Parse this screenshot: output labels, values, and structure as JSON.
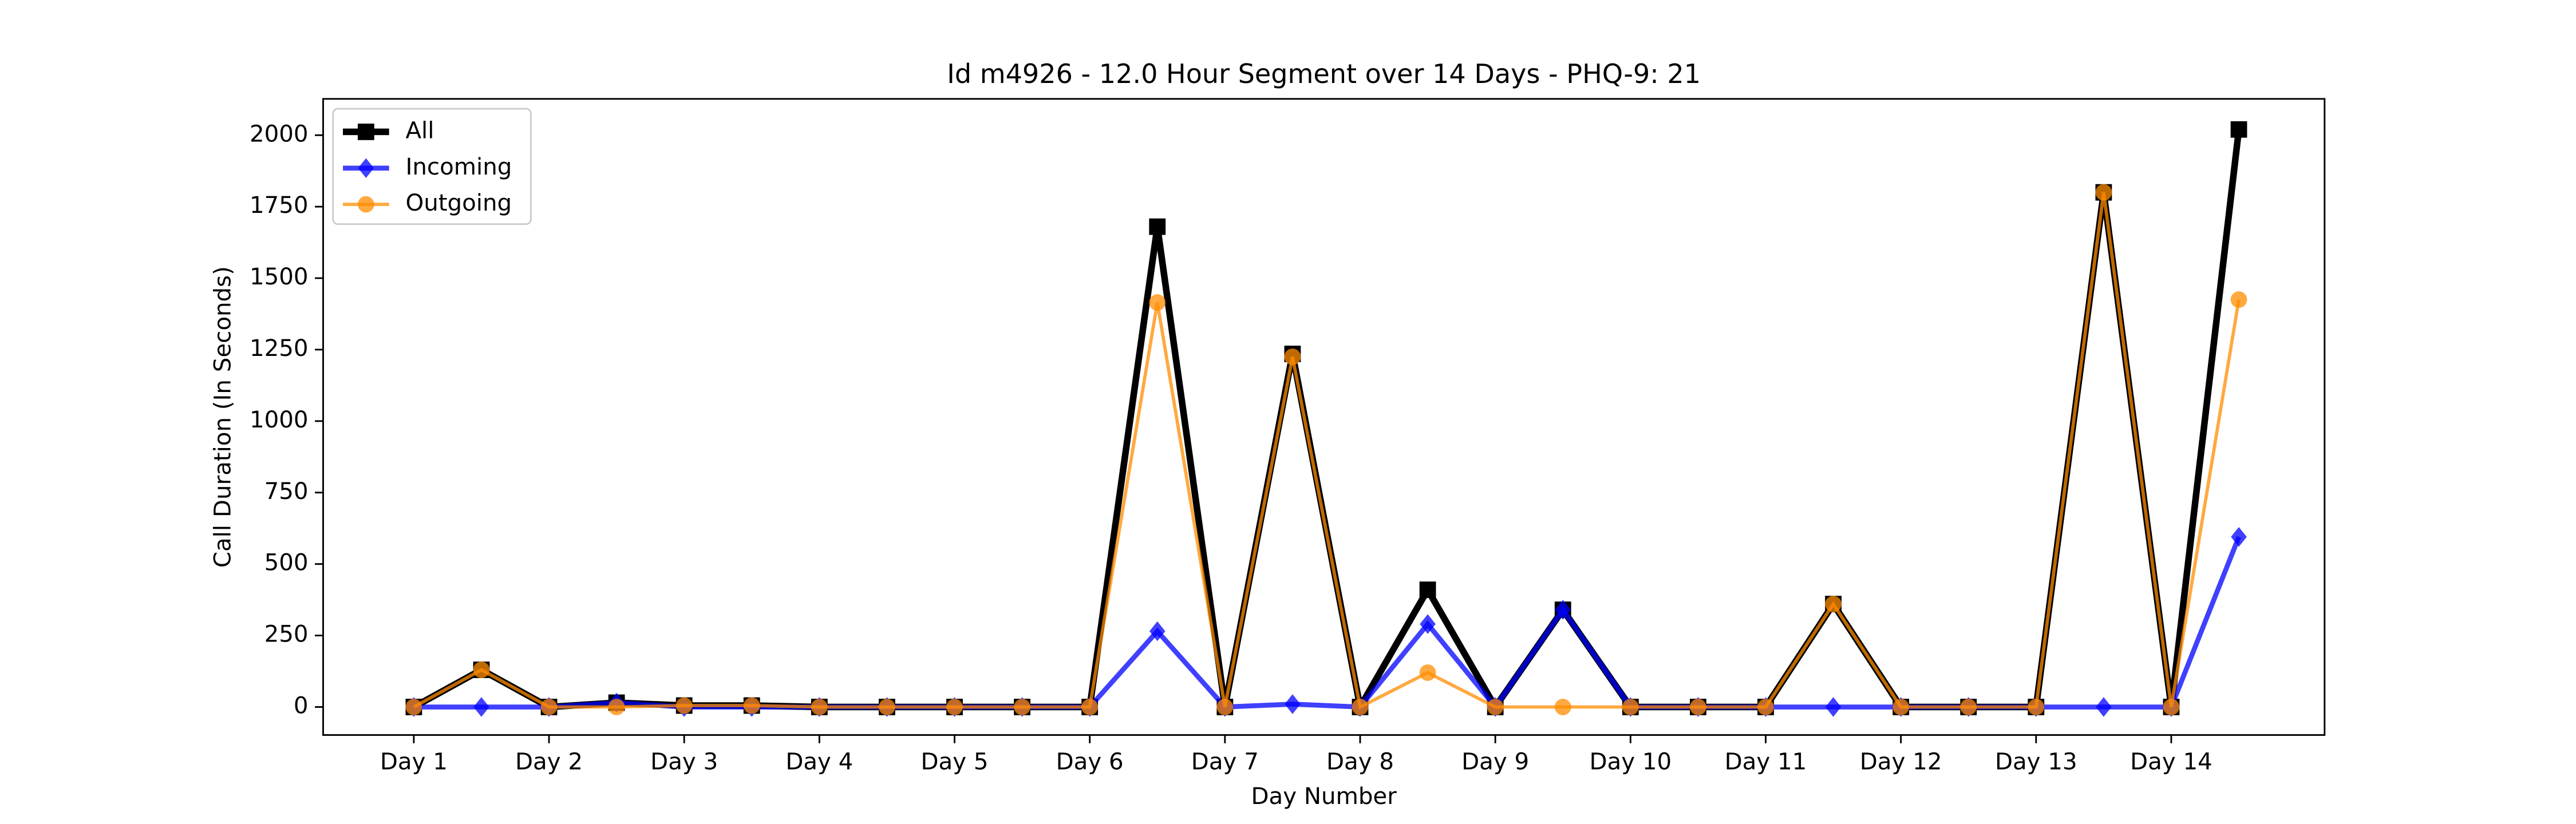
{
  "chart_data": {
    "type": "line",
    "title": "Id m4926 - 12.0 Hour Segment over 14 Days - PHQ-9: 21",
    "xlabel": "Day Number",
    "ylabel": "Call Duration (In Seconds)",
    "categories": [
      "Day 1",
      null,
      "Day 2",
      null,
      "Day 3",
      null,
      "Day 4",
      null,
      "Day 5",
      null,
      "Day 6",
      null,
      "Day 7",
      null,
      "Day 8",
      null,
      "Day 9",
      null,
      "Day 10",
      null,
      "Day 11",
      null,
      "Day 12",
      null,
      "Day 13",
      null,
      "Day 14",
      null
    ],
    "series": [
      {
        "name": "All",
        "color": "#000000",
        "marker": "square",
        "values": [
          0,
          130,
          0,
          15,
          5,
          5,
          0,
          0,
          0,
          0,
          0,
          1680,
          0,
          1235,
          0,
          410,
          0,
          340,
          0,
          0,
          0,
          360,
          0,
          0,
          0,
          1800,
          0,
          2020
        ]
      },
      {
        "name": "Incoming",
        "color": "#0000ff",
        "marker": "diamond",
        "values": [
          0,
          0,
          0,
          15,
          0,
          0,
          0,
          0,
          0,
          0,
          0,
          265,
          0,
          10,
          0,
          290,
          0,
          340,
          0,
          0,
          0,
          0,
          0,
          0,
          0,
          0,
          0,
          595
        ]
      },
      {
        "name": "Outgoing",
        "color": "#ff8c00",
        "marker": "circle",
        "values": [
          0,
          130,
          0,
          0,
          5,
          5,
          0,
          0,
          0,
          0,
          0,
          1415,
          0,
          1225,
          0,
          120,
          0,
          0,
          0,
          0,
          0,
          360,
          0,
          0,
          0,
          1800,
          0,
          1425
        ]
      }
    ],
    "ylim": [
      -98,
      2127
    ],
    "yticks": [
      0,
      250,
      500,
      750,
      1000,
      1250,
      1500,
      1750,
      2000
    ],
    "legend": "upper left",
    "grid": false
  }
}
